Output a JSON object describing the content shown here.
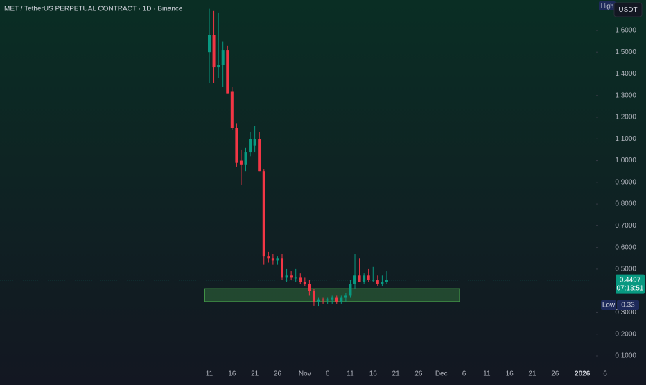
{
  "chart_data": {
    "type": "candlestick",
    "title": "MET / TetherUS PERPETUAL CONTRACT · 1D · Binance",
    "currency": "USDT",
    "high_marker": "High",
    "low_marker": "Low",
    "countdown": "07:13:51",
    "up_color": "#089981",
    "down_color": "#f23645",
    "categories": [
      "11",
      null,
      null,
      null,
      null,
      "16",
      null,
      null,
      null,
      null,
      "21",
      null,
      null,
      null,
      null,
      "26",
      null,
      null,
      null,
      null,
      null,
      "Nov",
      null,
      null,
      null,
      null,
      "6",
      null,
      null,
      null,
      null,
      "11",
      null,
      null,
      null,
      null,
      "16",
      null,
      null,
      null,
      null,
      "21",
      null,
      null,
      null,
      null,
      "26",
      null,
      null,
      null,
      null,
      "Dec",
      null,
      null,
      null,
      null,
      "6",
      null,
      null,
      null,
      null,
      "11",
      null,
      null,
      null,
      null,
      "16",
      null,
      null,
      null,
      null,
      "21",
      null,
      null,
      null,
      null,
      "26",
      null,
      null,
      null,
      null,
      null,
      "2026",
      null,
      null,
      null,
      null,
      "6"
    ],
    "open": [
      1.5,
      1.58,
      1.43,
      1.44,
      1.51,
      1.32,
      1.15,
      1.0,
      0.98,
      1.04,
      1.07,
      1.1,
      0.95,
      0.56,
      0.55,
      0.54,
      0.55,
      0.46,
      0.47,
      0.46,
      0.46,
      0.44,
      0.43,
      0.4,
      0.35,
      0.36,
      0.355,
      0.36,
      0.37,
      0.35,
      0.37,
      0.38,
      0.43,
      0.47,
      0.44,
      0.47,
      0.45,
      0.45,
      0.43,
      0.44,
      null,
      null,
      null,
      null,
      null,
      null,
      null,
      null,
      null,
      null,
      null,
      null,
      null,
      null,
      null,
      null,
      null,
      null,
      null,
      null,
      null,
      null,
      null,
      null,
      null,
      null,
      null,
      null,
      null,
      null,
      null,
      null,
      null,
      null,
      null,
      null,
      null,
      null,
      null,
      null,
      null,
      null,
      null,
      null,
      null,
      null,
      null,
      null
    ],
    "high": [
      1.7,
      1.69,
      1.68,
      1.55,
      1.53,
      1.34,
      1.17,
      1.05,
      1.06,
      1.13,
      1.16,
      1.13,
      0.96,
      0.58,
      0.57,
      0.56,
      0.57,
      0.5,
      0.49,
      0.5,
      0.48,
      0.46,
      0.45,
      0.41,
      0.37,
      0.37,
      0.37,
      0.38,
      0.38,
      0.38,
      0.39,
      0.45,
      0.57,
      0.55,
      0.48,
      0.5,
      0.51,
      0.47,
      0.47,
      0.49,
      null,
      null,
      null,
      null,
      null,
      null,
      null,
      null,
      null,
      null,
      null,
      null,
      null,
      null,
      null,
      null,
      null,
      null,
      null,
      null,
      null,
      null,
      null,
      null,
      null,
      null,
      null,
      null,
      null,
      null,
      null,
      null,
      null,
      null,
      null,
      null,
      null,
      null,
      null,
      null,
      null,
      null,
      null,
      null,
      null,
      null,
      null,
      null
    ],
    "low": [
      1.36,
      1.36,
      1.38,
      1.34,
      1.31,
      1.14,
      0.97,
      0.89,
      0.95,
      1.02,
      1.04,
      0.95,
      0.52,
      0.53,
      0.52,
      0.52,
      0.45,
      0.44,
      0.45,
      0.44,
      0.43,
      0.42,
      0.38,
      0.3306,
      0.33,
      0.34,
      0.34,
      0.34,
      0.34,
      0.34,
      0.35,
      0.37,
      0.41,
      0.44,
      0.43,
      0.44,
      0.44,
      0.42,
      0.42,
      0.43,
      null,
      null,
      null,
      null,
      null,
      null,
      null,
      null,
      null,
      null,
      null,
      null,
      null,
      null,
      null,
      null,
      null,
      null,
      null,
      null,
      null,
      null,
      null,
      null,
      null,
      null,
      null,
      null,
      null,
      null,
      null,
      null,
      null,
      null,
      null,
      null,
      null,
      null,
      null,
      null,
      null,
      null,
      null,
      null,
      null,
      null,
      null,
      null
    ],
    "close": [
      1.58,
      1.43,
      1.44,
      1.51,
      1.31,
      1.15,
      0.99,
      0.98,
      1.04,
      1.1,
      1.1,
      0.95,
      0.56,
      0.55,
      0.54,
      0.55,
      0.46,
      0.47,
      0.46,
      0.46,
      0.44,
      0.43,
      0.4,
      0.35,
      0.36,
      0.355,
      0.36,
      0.37,
      0.35,
      0.37,
      0.38,
      0.43,
      0.47,
      0.44,
      0.47,
      0.45,
      0.45,
      0.43,
      0.44,
      0.4497,
      null,
      null,
      null,
      null,
      null,
      null,
      null,
      null,
      null,
      null,
      null,
      null,
      null,
      null,
      null,
      null,
      null,
      null,
      null,
      null,
      null,
      null,
      null,
      null,
      null,
      null,
      null,
      null,
      null,
      null,
      null,
      null,
      null,
      null,
      null,
      null,
      null,
      null,
      null,
      null,
      null,
      null,
      null,
      null,
      null,
      null,
      null,
      null
    ],
    "zone": {
      "low": 0.35,
      "high": 0.41,
      "color": "#4caf50"
    },
    "ylim": [
      0.0456,
      1.7405
    ],
    "yticks": [
      {
        "value": 1.6,
        "label": "1.6000"
      },
      {
        "value": 1.5,
        "label": "1.5000"
      },
      {
        "value": 1.4,
        "label": "1.4000"
      },
      {
        "value": 1.3,
        "label": "1.3000"
      },
      {
        "value": 1.2,
        "label": "1.2000"
      },
      {
        "value": 1.1,
        "label": "1.1000"
      },
      {
        "value": 1.0,
        "label": "1.0000"
      },
      {
        "value": 0.9,
        "label": "0.9000"
      },
      {
        "value": 0.8,
        "label": "0.8000"
      },
      {
        "value": 0.7,
        "label": "0.7000"
      },
      {
        "value": 0.6,
        "label": "0.6000"
      },
      {
        "value": 0.5,
        "label": "0.5000"
      },
      {
        "value": 0.3,
        "label": "0.3000"
      },
      {
        "value": 0.2,
        "label": "0.2000"
      },
      {
        "value": 0.1,
        "label": "0.1000"
      }
    ]
  }
}
